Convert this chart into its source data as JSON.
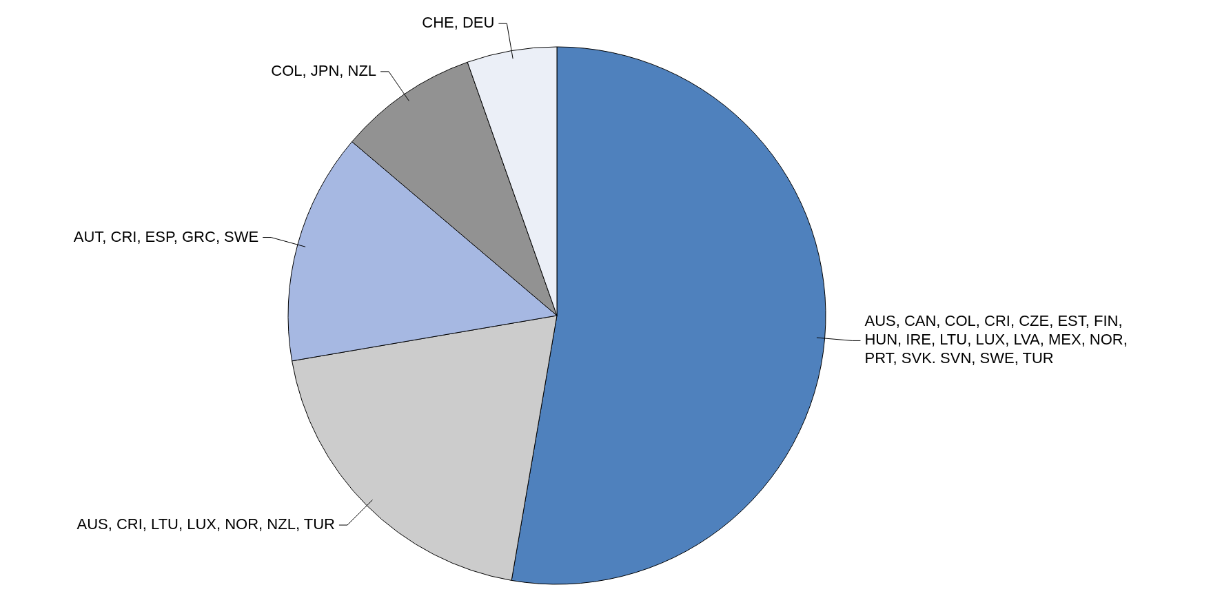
{
  "chart_data": {
    "type": "pie",
    "categories": [
      "AUS, CAN, COL, CRI, CZE, EST, FIN, HUN, IRE, LTU, LUX, LVA, MEX, NOR, PRT, SVK. SVN, SWE, TUR",
      "AUS, CRI, LTU, LUX, NOR, NZL, TUR",
      "AUT, CRI, ESP, GRC, SWE",
      "COL, JPN, NZL",
      "CHE, DEU"
    ],
    "values": [
      52.7,
      19.6,
      13.9,
      8.4,
      5.4
    ],
    "colors": [
      "#4f81bd",
      "#cccccc",
      "#a6b8e2",
      "#929292",
      "#ebeff7"
    ]
  }
}
